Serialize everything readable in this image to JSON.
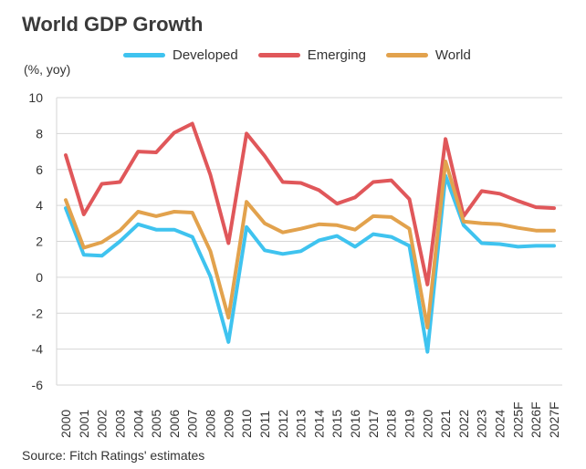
{
  "chart_data": {
    "type": "line",
    "title": "World GDP Growth",
    "ylabel": "(%, yoy)",
    "source": "Source: Fitch Ratings' estimates",
    "ylim": [
      -6,
      10
    ],
    "yticks": [
      -6,
      -4,
      -2,
      0,
      2,
      4,
      6,
      8,
      10
    ],
    "grid": true,
    "legend_position": "top",
    "categories": [
      "2000",
      "2001",
      "2002",
      "2003",
      "2004",
      "2005",
      "2006",
      "2007",
      "2008",
      "2009",
      "2010",
      "2011",
      "2012",
      "2013",
      "2014",
      "2015",
      "2016",
      "2017",
      "2018",
      "2019",
      "2020",
      "2021",
      "2022",
      "2023",
      "2024",
      "2025F",
      "2026F",
      "2027F"
    ],
    "series": [
      {
        "name": "Developed",
        "color": "#3fc3ef",
        "values": [
          3.85,
          1.25,
          1.2,
          2.0,
          2.95,
          2.65,
          2.65,
          2.25,
          0.05,
          -3.6,
          2.8,
          1.5,
          1.3,
          1.45,
          2.05,
          2.3,
          1.7,
          2.4,
          2.25,
          1.75,
          -4.15,
          5.65,
          2.9,
          1.9,
          1.85,
          1.7,
          1.75,
          1.75
        ]
      },
      {
        "name": "Emerging",
        "color": "#e0575a",
        "values": [
          6.8,
          3.5,
          5.2,
          5.3,
          7.0,
          6.95,
          8.05,
          8.55,
          5.7,
          1.9,
          8.0,
          6.75,
          5.3,
          5.25,
          4.85,
          4.1,
          4.45,
          5.3,
          5.4,
          4.35,
          -0.4,
          7.7,
          3.4,
          4.8,
          4.65,
          4.25,
          3.9,
          3.85
        ]
      },
      {
        "name": "World",
        "color": "#e2a24d",
        "values": [
          4.3,
          1.65,
          1.95,
          2.6,
          3.65,
          3.4,
          3.65,
          3.6,
          1.45,
          -2.25,
          4.2,
          3.0,
          2.5,
          2.7,
          2.95,
          2.9,
          2.65,
          3.4,
          3.35,
          2.7,
          -2.8,
          6.45,
          3.1,
          3.0,
          2.95,
          2.75,
          2.6,
          2.6
        ]
      }
    ]
  }
}
